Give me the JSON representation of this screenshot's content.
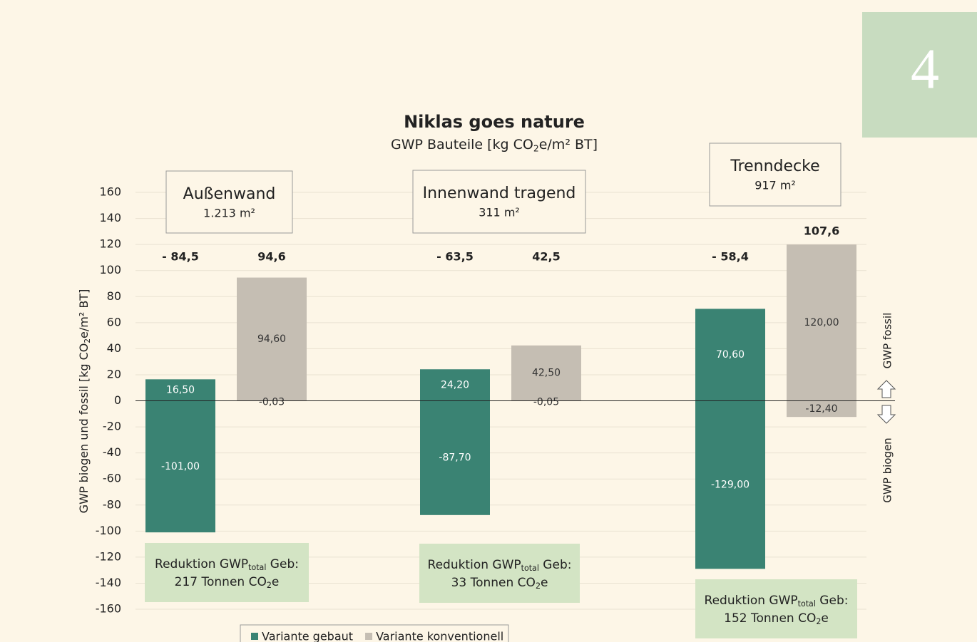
{
  "chart_data": {
    "type": "stacked-bar",
    "title": "Niklas goes nature",
    "subtitle": [
      "GWP Bauteile [kg CO",
      "2",
      "e/m² BT]"
    ],
    "y_label": [
      "GWP biogen und fossil [kg CO",
      "2",
      "e/m² BT]"
    ],
    "side_labels": {
      "up": "GWP fossil",
      "down": "GWP biogen"
    },
    "page_number": "4",
    "categories": [
      "Außenwand",
      "Innenwand tragend",
      "Trenndecke"
    ],
    "areas": [
      "1.213 m²",
      "311 m²",
      "917 m²"
    ],
    "reductions": [
      [
        [
          "Reduktion GWP",
          "total",
          " Geb:"
        ],
        [
          "217 Tonnen CO",
          "2",
          "e"
        ]
      ],
      [
        [
          "Reduktion GWP",
          "total",
          " Geb:"
        ],
        [
          "33 Tonnen CO",
          "2",
          "e"
        ]
      ],
      [
        [
          "Reduktion GWP",
          "total",
          " Geb:"
        ],
        [
          "152 Tonnen CO",
          "2",
          "e"
        ]
      ]
    ],
    "series": [
      {
        "name": "Variante gebaut",
        "color": "#3a8373",
        "positive": {
          "values": [
            16.5,
            24.2,
            70.6
          ],
          "value_labels": [
            "16,50",
            "24,20",
            "70,60"
          ]
        },
        "negative": {
          "values": [
            -101,
            -87.7,
            -129
          ],
          "value_labels": [
            "-101,00",
            "-87,70",
            "-129,00"
          ]
        },
        "totals": [
          "- 84,5",
          "- 63,5",
          "- 58,4"
        ]
      },
      {
        "name": "Variante konventionell",
        "color": "#c5beb3",
        "positive": {
          "values": [
            94.6,
            42.5,
            120.0
          ],
          "value_labels": [
            "94,60",
            "42,50",
            "120,00"
          ]
        },
        "negative": {
          "values": [
            -0.03,
            -0.05,
            -12.4
          ],
          "value_labels": [
            "-0,03",
            "-0,05",
            "-12,40"
          ]
        },
        "totals": [
          "94,6",
          "42,5",
          "107,6"
        ]
      }
    ],
    "ylim": [
      -160,
      160
    ],
    "yticks": [
      -160,
      -140,
      -120,
      -100,
      -80,
      -60,
      -40,
      -20,
      0,
      20,
      40,
      60,
      80,
      100,
      120,
      140,
      160
    ],
    "grid": true
  }
}
